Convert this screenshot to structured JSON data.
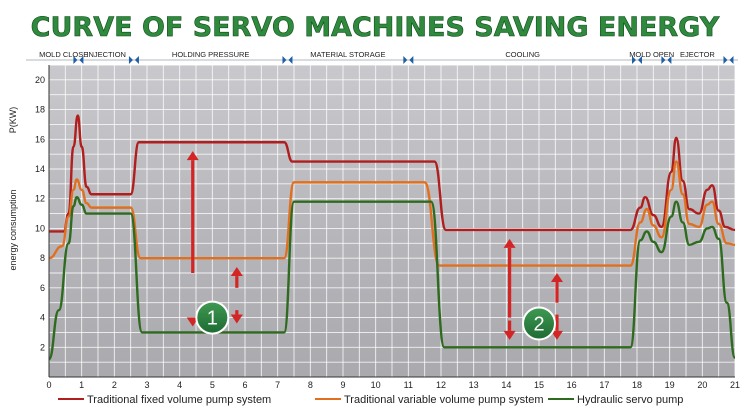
{
  "chart_data": {
    "type": "line",
    "title": "CURVE OF SERVO MACHINES SAVING ENERGY",
    "ylabel_unit": "P(KW)",
    "ylabel": "energy consumption",
    "xlim": [
      0,
      21
    ],
    "ylim": [
      0,
      21
    ],
    "x_ticks": [
      "0",
      "1",
      "2",
      "3",
      "4",
      "5",
      "6",
      "7",
      "8",
      "9",
      "10",
      "11",
      "12",
      "13",
      "14",
      "15",
      "16",
      "17",
      "18",
      "19",
      "20",
      "21"
    ],
    "y_ticks": [
      "2",
      "4",
      "6",
      "8",
      "10",
      "12",
      "14",
      "16",
      "18",
      "20"
    ],
    "phases": [
      {
        "label": "MOLD CLOSE",
        "start": 0,
        "end": 0.9
      },
      {
        "label": "INJECTION",
        "start": 0.9,
        "end": 2.6
      },
      {
        "label": "HOLDING PRESSURE",
        "start": 2.6,
        "end": 7.3
      },
      {
        "label": "MATERIAL STORAGE",
        "start": 7.3,
        "end": 11.0
      },
      {
        "label": "COOLING",
        "start": 11.0,
        "end": 18.0
      },
      {
        "label": "MOLD OPEN",
        "start": 18.0,
        "end": 18.9
      },
      {
        "label": "EJECTOR",
        "start": 18.9,
        "end": 20.8
      }
    ],
    "series": [
      {
        "name": "Traditional fixed volume pump system",
        "color": "#b01e1e",
        "points": [
          [
            0,
            9.8
          ],
          [
            0.45,
            9.8
          ],
          [
            0.6,
            11.0
          ],
          [
            0.75,
            15.5
          ],
          [
            0.88,
            17.6
          ],
          [
            1.0,
            15.5
          ],
          [
            1.15,
            12.8
          ],
          [
            1.3,
            12.3
          ],
          [
            2.5,
            12.3
          ],
          [
            2.75,
            15.8
          ],
          [
            7.2,
            15.8
          ],
          [
            7.45,
            14.5
          ],
          [
            11.8,
            14.5
          ],
          [
            12.15,
            9.9
          ],
          [
            17.8,
            9.9
          ],
          [
            18.1,
            11.4
          ],
          [
            18.25,
            12.1
          ],
          [
            18.5,
            10.9
          ],
          [
            18.75,
            10.1
          ],
          [
            19.05,
            13.8
          ],
          [
            19.2,
            16.1
          ],
          [
            19.4,
            13.2
          ],
          [
            19.6,
            11.3
          ],
          [
            19.9,
            11.0
          ],
          [
            20.15,
            12.6
          ],
          [
            20.3,
            12.9
          ],
          [
            20.5,
            11.2
          ],
          [
            20.7,
            10.1
          ],
          [
            21,
            9.9
          ]
        ]
      },
      {
        "name": "Traditional variable volume pump system",
        "color": "#e07020",
        "points": [
          [
            0,
            8.0
          ],
          [
            0.4,
            8.8
          ],
          [
            0.6,
            10.8
          ],
          [
            0.75,
            12.6
          ],
          [
            0.85,
            13.3
          ],
          [
            1.0,
            12.6
          ],
          [
            1.15,
            11.7
          ],
          [
            1.3,
            11.4
          ],
          [
            2.5,
            11.4
          ],
          [
            2.8,
            8.0
          ],
          [
            7.2,
            8.0
          ],
          [
            7.5,
            13.1
          ],
          [
            11.5,
            13.1
          ],
          [
            11.95,
            7.5
          ],
          [
            17.8,
            7.5
          ],
          [
            18.1,
            10.4
          ],
          [
            18.3,
            11.3
          ],
          [
            18.5,
            10.2
          ],
          [
            18.75,
            9.4
          ],
          [
            19.05,
            12.6
          ],
          [
            19.2,
            14.5
          ],
          [
            19.4,
            12.3
          ],
          [
            19.6,
            10.3
          ],
          [
            19.9,
            10.1
          ],
          [
            20.15,
            11.6
          ],
          [
            20.3,
            11.8
          ],
          [
            20.5,
            10.3
          ],
          [
            20.75,
            9.0
          ],
          [
            21,
            8.9
          ]
        ]
      },
      {
        "name": "Hydraulic servo pump",
        "color": "#2f6b1f",
        "points": [
          [
            0,
            1.2
          ],
          [
            0.3,
            4.5
          ],
          [
            0.6,
            9.0
          ],
          [
            0.75,
            11.5
          ],
          [
            0.85,
            12.1
          ],
          [
            1.0,
            11.6
          ],
          [
            1.15,
            11.0
          ],
          [
            2.5,
            11.0
          ],
          [
            2.85,
            3.0
          ],
          [
            7.2,
            3.0
          ],
          [
            7.5,
            11.8
          ],
          [
            11.7,
            11.8
          ],
          [
            12.1,
            2.0
          ],
          [
            17.8,
            2.0
          ],
          [
            18.1,
            9.2
          ],
          [
            18.3,
            9.8
          ],
          [
            18.5,
            9.1
          ],
          [
            18.75,
            8.4
          ],
          [
            19.05,
            10.8
          ],
          [
            19.2,
            11.8
          ],
          [
            19.4,
            10.4
          ],
          [
            19.6,
            8.9
          ],
          [
            19.9,
            9.1
          ],
          [
            20.15,
            10.0
          ],
          [
            20.3,
            10.1
          ],
          [
            20.5,
            9.3
          ],
          [
            20.75,
            5.0
          ],
          [
            21,
            1.3
          ]
        ]
      }
    ],
    "annotations": [
      {
        "label": "1",
        "x": 5.0,
        "y": 4.0
      },
      {
        "label": "2",
        "x": 15.0,
        "y": 3.6
      }
    ],
    "arrows": [
      {
        "x": 4.4,
        "from": 7.0,
        "to": 15.2,
        "direction": "up"
      },
      {
        "x": 4.4,
        "from": 4.0,
        "to": 3.4,
        "direction": "down"
      },
      {
        "x": 5.75,
        "from": 6.0,
        "to": 7.4,
        "direction": "up"
      },
      {
        "x": 5.75,
        "from": 4.5,
        "to": 3.6,
        "direction": "down"
      },
      {
        "x": 14.1,
        "from": 4.0,
        "to": 9.3,
        "direction": "up"
      },
      {
        "x": 14.1,
        "from": 3.8,
        "to": 2.5,
        "direction": "down"
      },
      {
        "x": 15.55,
        "from": 5.0,
        "to": 7.0,
        "direction": "up"
      },
      {
        "x": 15.55,
        "from": 4.2,
        "to": 2.5,
        "direction": "down"
      }
    ],
    "grid": true,
    "legend_position": "bottom"
  }
}
